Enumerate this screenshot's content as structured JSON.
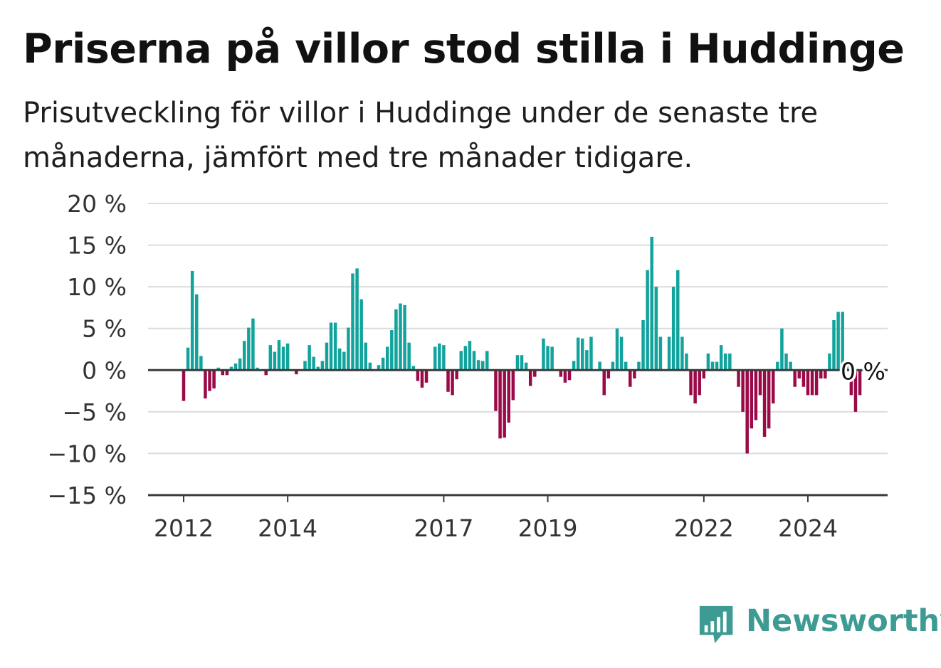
{
  "header": {
    "title": "Priserna på villor stod stilla i Huddinge",
    "subtitle": "Prisutveckling för villor i Huddinge under de senaste tre månaderna, jämfört med tre månader tidigare."
  },
  "brand": {
    "name": "Newsworthy",
    "icon": "newsworthy-logo-icon",
    "color": "#3d9b94"
  },
  "chart_data": {
    "type": "bar",
    "title": "",
    "xlabel": "",
    "ylabel": "",
    "ylim": [
      -15,
      20
    ],
    "yticks": [
      20,
      15,
      10,
      5,
      0,
      -5,
      -10,
      -15
    ],
    "ytick_labels": [
      "20 %",
      "15 %",
      "10 %",
      "5 %",
      "0 %",
      "−5 %",
      "−10 %",
      "−15 %"
    ],
    "xticks": [
      "2012",
      "2014",
      "2017",
      "2019",
      "2022",
      "2024"
    ],
    "grid": true,
    "colors": {
      "positive": "#13a39d",
      "negative": "#9a0a48"
    },
    "annotation": "0 %",
    "x_start": "2012-01",
    "frequency": "monthly",
    "values": [
      -3.7,
      2.7,
      11.9,
      9.1,
      1.7,
      -3.4,
      -2.5,
      -2.2,
      0.3,
      -0.6,
      -0.6,
      0.4,
      0.8,
      1.4,
      3.5,
      5.1,
      6.2,
      0.3,
      0.0,
      -0.6,
      3.0,
      2.2,
      3.6,
      2.8,
      3.2,
      0.0,
      -0.5,
      0.0,
      1.1,
      3.0,
      1.6,
      0.4,
      1.1,
      3.3,
      5.7,
      5.7,
      2.6,
      2.2,
      5.1,
      11.6,
      12.2,
      8.5,
      3.3,
      0.9,
      0.0,
      0.6,
      1.5,
      2.8,
      4.8,
      7.3,
      8.0,
      7.8,
      3.3,
      0.5,
      -1.3,
      -2.1,
      -1.5,
      0.0,
      2.8,
      3.2,
      3.0,
      -2.6,
      -3.0,
      -1.1,
      2.3,
      2.9,
      3.5,
      2.3,
      1.2,
      1.1,
      2.3,
      0.0,
      -4.9,
      -8.2,
      -8.1,
      -6.3,
      -3.6,
      1.8,
      1.8,
      0.9,
      -1.9,
      -0.8,
      0.0,
      3.8,
      2.9,
      2.8,
      0.0,
      -0.8,
      -1.5,
      -1.2,
      1.1,
      3.9,
      3.8,
      2.4,
      4.0,
      0.0,
      1.0,
      -3.0,
      -1.0,
      1.0,
      5.0,
      4.0,
      1.0,
      -2.0,
      -1.0,
      1.0,
      6.0,
      12.0,
      16.0,
      10.0,
      4.0,
      0.0,
      4.0,
      10.0,
      12.0,
      4.0,
      2.0,
      -3.0,
      -4.0,
      -3.0,
      -1.0,
      2.0,
      1.0,
      1.0,
      3.0,
      2.0,
      2.0,
      0.0,
      -2.0,
      -5.0,
      -10.0,
      -7.0,
      -6.0,
      -3.0,
      -8.0,
      -7.0,
      -4.0,
      1.0,
      5.0,
      2.0,
      1.0,
      -2.0,
      -1.0,
      -2.0,
      -3.0,
      -3.0,
      -3.0,
      -1.0,
      -1.0,
      2.0,
      6.0,
      7.0,
      7.0,
      1.0,
      -3.0,
      -5.0,
      -3.0
    ]
  }
}
